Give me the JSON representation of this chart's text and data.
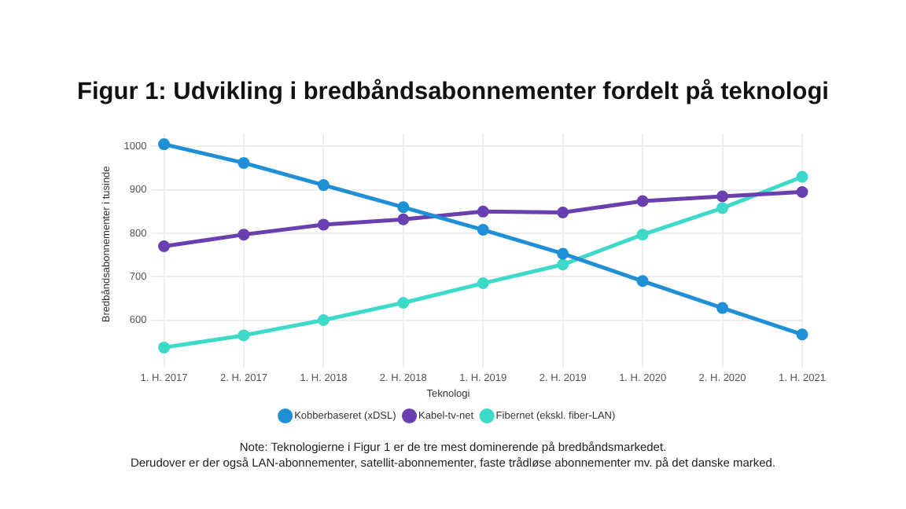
{
  "chart_data": {
    "type": "line",
    "title": "Figur 1: Udvikling i bredbåndsabonnementer fordelt på teknologi",
    "ylabel": "Bredbåndsabonnementer i tusinde",
    "legend_title": "Teknologi",
    "categories": [
      "1. H. 2017",
      "2. H. 2017",
      "1. H. 2018",
      "2. H. 2018",
      "1. H. 2019",
      "2. H. 2019",
      "1. H. 2020",
      "2. H. 2020",
      "1. H. 2021"
    ],
    "series": [
      {
        "name": "Kobberbaseret (xDSL)",
        "color": "#1f8fd6",
        "values": [
          1005,
          962,
          911,
          860,
          808,
          753,
          690,
          628,
          567
        ]
      },
      {
        "name": "Kabel-tv-net",
        "color": "#6a3fb0",
        "values": [
          770,
          797,
          820,
          832,
          850,
          848,
          874,
          885,
          895
        ]
      },
      {
        "name": "Fibernet (ekskl. fiber-LAN)",
        "color": "#3dd9c9",
        "values": [
          537,
          565,
          600,
          640,
          685,
          728,
          797,
          858,
          930
        ]
      }
    ],
    "ylim": [
      520,
      1030
    ],
    "yticks": [
      600,
      700,
      800,
      900,
      1000
    ],
    "grid": true,
    "legend": "bottom",
    "marker": "circle",
    "line_style": "solid",
    "annotations": [
      "Note: Teknologierne i Figur 1 er de tre mest dominerende på bredbåndsmarkedet.",
      "Derudover er der også LAN-abonnementer, satellit-abonnementer, faste trådløse abonnementer mv. på det danske marked."
    ]
  }
}
